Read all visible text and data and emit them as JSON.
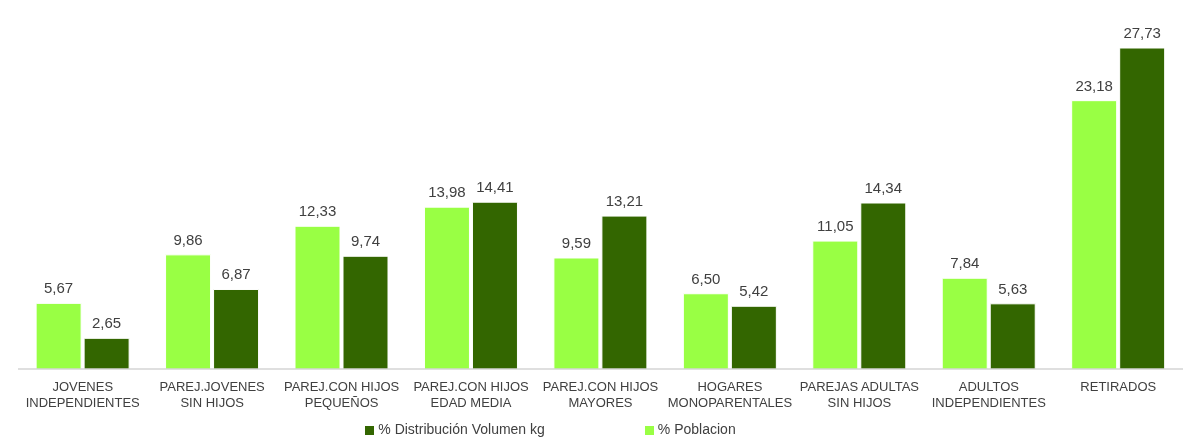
{
  "chart_data": {
    "type": "bar",
    "categories": [
      "JOVENES INDEPENDIENTES",
      "PAREJ.JOVENES SIN HIJOS",
      "PAREJ.CON HIJOS PEQUEÑOS",
      "PAREJ.CON HIJOS EDAD MEDIA",
      "PAREJ.CON HIJOS MAYORES",
      "HOGARES MONOPARENTALES",
      "PAREJAS ADULTAS SIN HIJOS",
      "ADULTOS INDEPENDIENTES",
      "RETIRADOS"
    ],
    "series": [
      {
        "name": "% Poblacion",
        "color": "#99ff44",
        "values": [
          5.67,
          9.86,
          12.33,
          13.98,
          9.59,
          6.5,
          11.05,
          7.84,
          23.18
        ],
        "value_labels": [
          "5,67",
          "9,86",
          "12,33",
          "13,98",
          "9,59",
          "6,50",
          "11,05",
          "7,84",
          "23,18"
        ]
      },
      {
        "name": "% Distribución Volumen kg",
        "color": "#336600",
        "values": [
          2.65,
          6.87,
          9.74,
          14.41,
          13.21,
          5.42,
          14.34,
          5.63,
          27.73
        ],
        "value_labels": [
          "2,65",
          "6,87",
          "9,74",
          "14,41",
          "13,21",
          "5,42",
          "14,34",
          "5,63",
          "27,73"
        ]
      }
    ],
    "legend": "bottom",
    "grid": false
  }
}
